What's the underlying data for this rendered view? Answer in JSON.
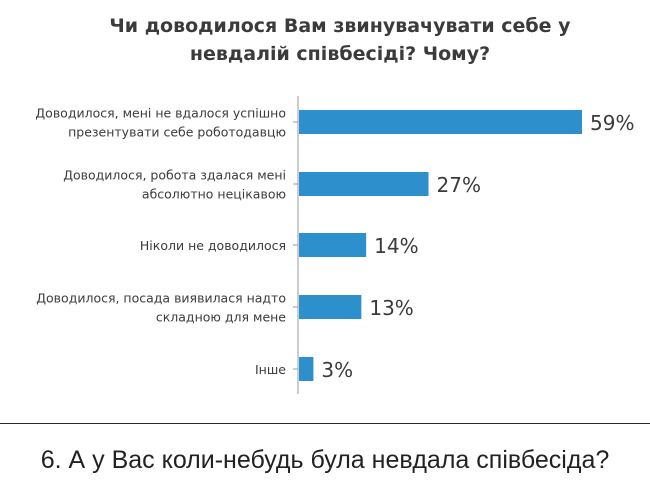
{
  "colors": {
    "bar": "#2e8fcd",
    "axis": "#9a9a9a",
    "text": "#3b3b3b"
  },
  "chart_data": {
    "type": "bar",
    "orientation": "horizontal",
    "title_lines": [
      "Чи доводилося Вам звинувачувати себе у",
      "невдалій співбесіді? Чому?"
    ],
    "categories": [
      [
        "Доводилося, мені не вдалося успішно",
        "презентувати себе роботодавцю"
      ],
      [
        "Доводилося, робота здалася мені",
        "абсолютно нецікавою"
      ],
      [
        "Ніколи не доводилося"
      ],
      [
        "Доводилося, посада виявилася надто",
        "складною для мене"
      ],
      [
        "Інше"
      ]
    ],
    "values": [
      59,
      27,
      14,
      13,
      3
    ],
    "value_labels": [
      "59%",
      "27%",
      "14%",
      "13%",
      "3%"
    ],
    "unit": "%",
    "xlim": [
      0,
      59
    ],
    "grid": false,
    "legend": "none"
  },
  "caption": "6. А у Вас коли-небудь була невдала співбесіда?"
}
